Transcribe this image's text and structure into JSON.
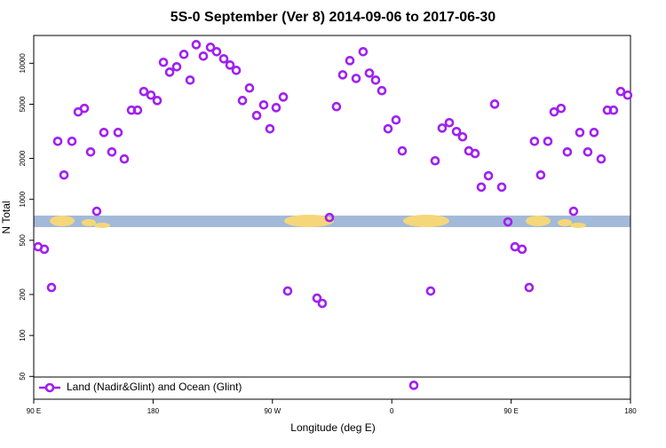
{
  "chart_data": {
    "type": "scatter",
    "title": "5S-0 September (Ver 8)   2014-09-06 to 2017-06-30",
    "xlabel": "Longitude (deg E)",
    "ylabel": "N Total",
    "xlim": [
      90,
      540
    ],
    "xticks": [
      {
        "value": 90,
        "label": "90 E"
      },
      {
        "value": 180,
        "label": "180"
      },
      {
        "value": 270,
        "label": "90 W"
      },
      {
        "value": 360,
        "label": "0"
      },
      {
        "value": 450,
        "label": "90 E"
      },
      {
        "value": 540,
        "label": "180"
      }
    ],
    "ylim": [
      34,
      16000
    ],
    "yscale": "log",
    "yticks": [
      50,
      100,
      200,
      500,
      1000,
      2000,
      5000,
      10000
    ],
    "legend": "bottom-left",
    "series": [
      {
        "name": "Land (Nadir&Glint) and Ocean (Glint)",
        "color": "#a020f0",
        "x": [
          93.3,
          98.0,
          103.4,
          108.1,
          112.8,
          118.8,
          123.5,
          128.2,
          132.9,
          137.5,
          142.9,
          148.9,
          153.6,
          158.3,
          163.7,
          168.3,
          173.0,
          178.4,
          183.1,
          187.8,
          192.5,
          197.8,
          203.2,
          207.9,
          212.5,
          217.9,
          223.3,
          227.9,
          233.3,
          238.0,
          242.7,
          247.4,
          252.7,
          258.1,
          263.4,
          268.1,
          272.8,
          278.2,
          281.5,
          303.6,
          307.6,
          313.0,
          318.3,
          323.0,
          328.4,
          333.1,
          338.4,
          343.1,
          347.8,
          352.5,
          357.2,
          363.2,
          367.9,
          376.6,
          389.3,
          392.7,
          398.0,
          403.4,
          408.8,
          413.4,
          418.1,
          422.8,
          427.5,
          432.9,
          437.6,
          442.9,
          447.6,
          452.9,
          458.3,
          463.6,
          467.6,
          472.3,
          477.7,
          482.4,
          487.7,
          492.4,
          497.1,
          501.8,
          507.8,
          512.5,
          517.9,
          522.6,
          527.2,
          532.6,
          537.9
        ],
        "values": [
          448,
          430,
          225,
          2670,
          1510,
          2670,
          4390,
          4660,
          2230,
          817,
          3100,
          2230,
          3100,
          1980,
          4520,
          4520,
          6200,
          5830,
          5320,
          10160,
          8600,
          9420,
          11620,
          7520,
          13700,
          11280,
          13100,
          12160,
          10780,
          9700,
          8870,
          5320,
          6580,
          4130,
          4940,
          3300,
          4720,
          5650,
          212,
          188,
          172,
          735,
          4800,
          8220,
          10460,
          7740,
          12160,
          8470,
          7520,
          6290,
          3300,
          3830,
          2270,
          43,
          212,
          1920,
          3340,
          3660,
          3150,
          2880,
          2270,
          2170,
          1230,
          1490,
          5010,
          1230,
          683,
          448,
          430,
          225,
          2670,
          1510,
          2670,
          4390,
          4660,
          2230,
          817,
          3100,
          2230,
          3100,
          1980,
          4520,
          4520,
          6200,
          5830
        ]
      }
    ]
  }
}
